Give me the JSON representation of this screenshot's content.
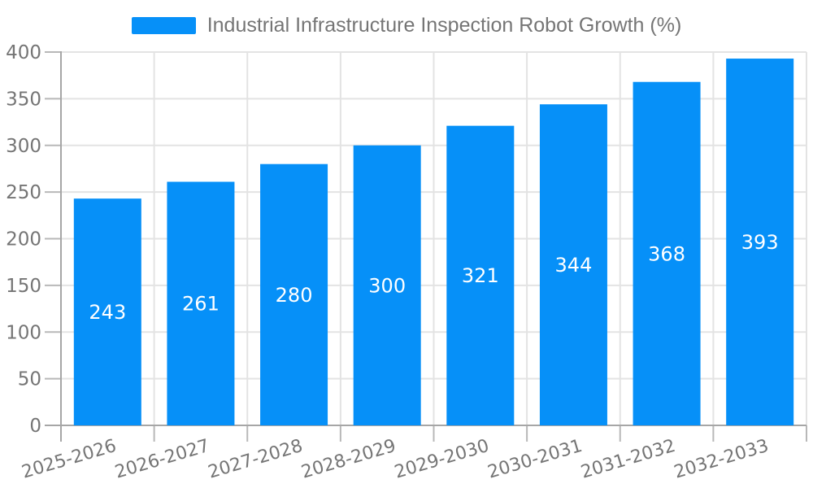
{
  "colors": {
    "accent": "#0690f8",
    "text": "#757575",
    "grid": "#e3e3e3",
    "axis": "#a6a6a6",
    "tick": "#b8b8b8",
    "value_label": "#ffffff",
    "background": "#ffffff"
  },
  "legend": {
    "label": "Industrial Infrastructure Inspection Robot Growth (%)",
    "swatch_color": "#0690f8"
  },
  "chart_data": {
    "type": "bar",
    "title": "",
    "xlabel": "",
    "ylabel": "",
    "categories": [
      "2025-2026",
      "2026-2027",
      "2027-2028",
      "2028-2029",
      "2029-2030",
      "2030-2031",
      "2031-2032",
      "2032-2033"
    ],
    "series": [
      {
        "name": "Industrial Infrastructure Inspection Robot Growth (%)",
        "values": [
          243,
          261,
          280,
          300,
          321,
          344,
          368,
          393
        ]
      }
    ],
    "values": [
      243,
      261,
      280,
      300,
      321,
      344,
      368,
      393
    ],
    "value_labels": [
      "243",
      "261",
      "280",
      "300",
      "321",
      "344",
      "368",
      "393"
    ],
    "value_label_position": "inside-center",
    "ylim": [
      0,
      400
    ],
    "ytick_step": 50,
    "yticks": [
      0,
      50,
      100,
      150,
      200,
      250,
      300,
      350,
      400
    ],
    "grid": true,
    "x_label_rotation_deg": 16.5,
    "legend_position": "top-center",
    "bar_color": "#0690f8"
  }
}
